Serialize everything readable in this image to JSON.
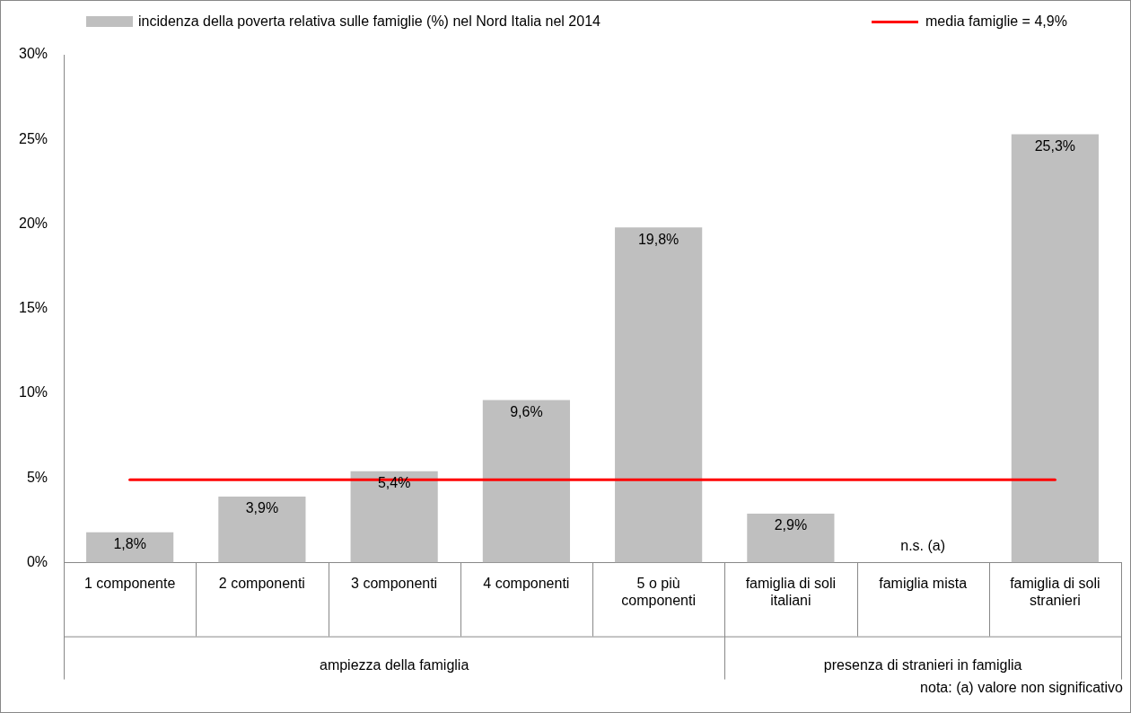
{
  "chart_data": {
    "type": "bar",
    "categories": [
      "1 componente",
      "2 componenti",
      "3 componenti",
      "4 componenti",
      "5 o più componenti",
      "famiglia di soli italiani",
      "famiglia mista",
      "famiglia di soli stranieri"
    ],
    "series": [
      {
        "name": "incidenza della poverta relativa sulle famiglie (%) nel Nord Italia nel 2014",
        "color": "#bfbfbf",
        "values": [
          1.8,
          3.9,
          5.4,
          9.6,
          19.8,
          2.9,
          null,
          25.3
        ],
        "value_labels": [
          "1,8%",
          "3,9%",
          "5,4%",
          "9,6%",
          "19,8%",
          "2,9%",
          "n.s. (a)",
          "25,3%"
        ]
      }
    ],
    "ylim": [
      0,
      30
    ],
    "yticks": [
      {
        "value": 0,
        "label": "0%"
      },
      {
        "value": 5,
        "label": "5%"
      },
      {
        "value": 10,
        "label": "10%"
      },
      {
        "value": 15,
        "label": "15%"
      },
      {
        "value": 20,
        "label": "20%"
      },
      {
        "value": 25,
        "label": "25%"
      },
      {
        "value": 30,
        "label": "30%"
      }
    ],
    "ref_lines": [
      {
        "axis": "y",
        "value": 4.9,
        "label": "media famiglie = 4,9%",
        "color": "#ff0000"
      }
    ],
    "annotations": [
      "ampiezza della famiglia",
      "presenza di stranieri in famiglia",
      "nota: (a) valore non significativo"
    ],
    "grid": false,
    "legend": "top"
  }
}
